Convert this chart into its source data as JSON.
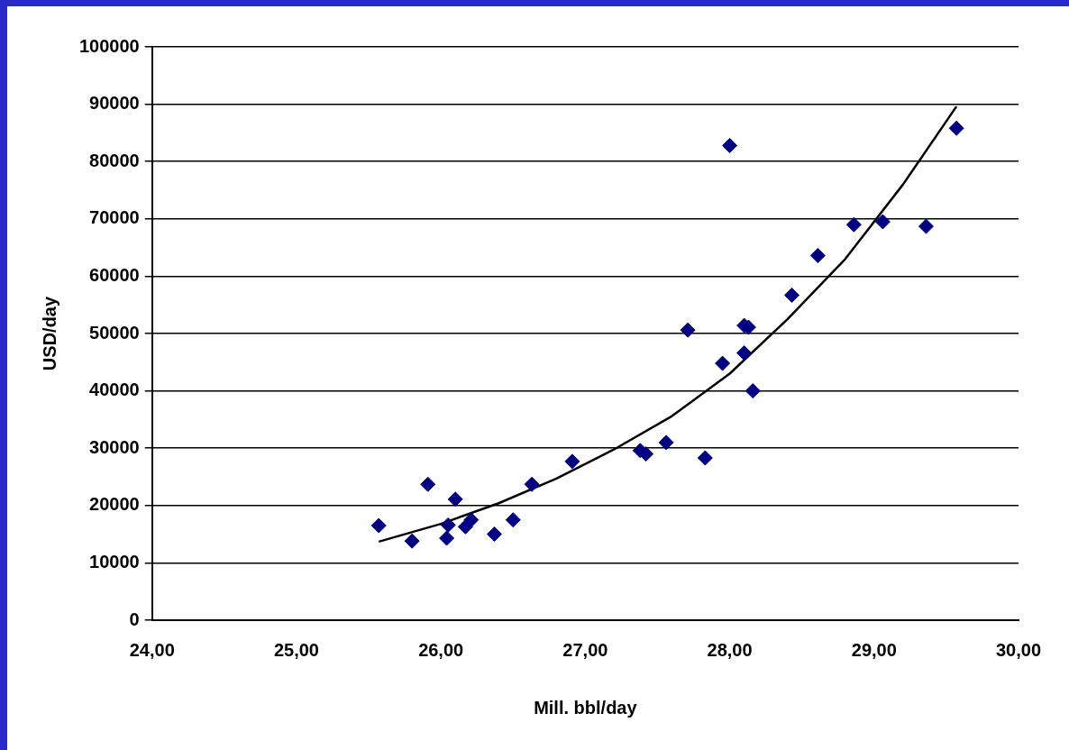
{
  "chart_data": {
    "type": "scatter",
    "xlabel": "Mill. bbl/day",
    "ylabel": "USD/day",
    "xlim": [
      24,
      30
    ],
    "xticks": [
      {
        "value": 24,
        "label": "24,00"
      },
      {
        "value": 25,
        "label": "25,00"
      },
      {
        "value": 26,
        "label": "26,00"
      },
      {
        "value": 27,
        "label": "27,00"
      },
      {
        "value": 28,
        "label": "28,00"
      },
      {
        "value": 29,
        "label": "29,00"
      },
      {
        "value": 30,
        "label": "30,00"
      }
    ],
    "ylim": [
      0,
      100000
    ],
    "yticks": [
      0,
      10000,
      20000,
      30000,
      40000,
      50000,
      60000,
      70000,
      80000,
      90000,
      100000
    ],
    "grid": "y",
    "legend": false,
    "marker": "diamond",
    "series": [
      {
        "color": "#000080",
        "x": [
          25.57,
          25.8,
          25.91,
          26.04,
          26.05,
          26.1,
          26.17,
          26.21,
          26.37,
          26.5,
          26.63,
          26.91,
          27.38,
          27.42,
          27.56,
          27.71,
          27.83,
          27.95,
          28.0,
          28.1,
          28.1,
          28.13,
          28.16,
          28.43,
          28.61,
          28.86,
          29.06,
          29.36,
          29.57
        ],
        "values": [
          16500,
          13800,
          23700,
          14300,
          16600,
          21100,
          16300,
          17500,
          15000,
          17500,
          23700,
          27700,
          29600,
          29000,
          31000,
          50600,
          28300,
          44800,
          82800,
          46600,
          51400,
          51100,
          40000,
          56700,
          63600,
          69000,
          69500,
          68700,
          85800
        ]
      },
      {
        "type": "line",
        "color": "#000000",
        "marker": "none",
        "line_style": "solid",
        "x": [
          25.57,
          26.0,
          26.4,
          26.8,
          27.2,
          27.6,
          28.0,
          28.4,
          28.8,
          29.2,
          29.57
        ],
        "values": [
          13700,
          16800,
          20400,
          24700,
          29800,
          35600,
          43000,
          52500,
          63000,
          76000,
          89600
        ]
      }
    ]
  }
}
